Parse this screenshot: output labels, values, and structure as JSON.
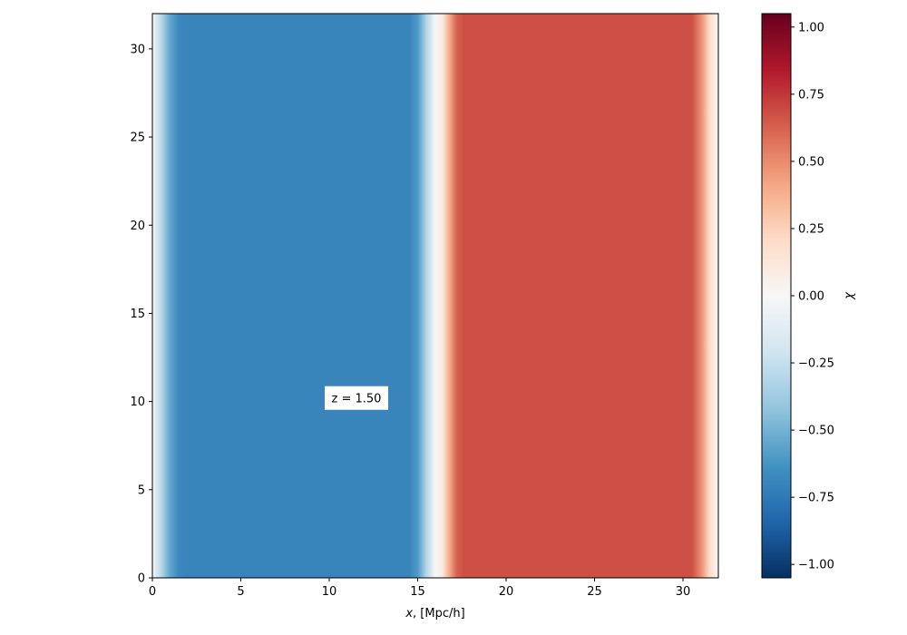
{
  "chart_data": {
    "type": "heatmap",
    "title": "",
    "xlabel_var": "x",
    "xlabel_rest": ", [Mpc/h]",
    "ylabel": "",
    "xlim": [
      0,
      32
    ],
    "ylim": [
      0,
      32
    ],
    "x_ticks": [
      "0",
      "5",
      "10",
      "15",
      "20",
      "25",
      "30"
    ],
    "y_ticks": [
      "0",
      "5",
      "10",
      "15",
      "20",
      "25",
      "30"
    ],
    "profile": {
      "description": "chi varies only along x (uniform in y)",
      "x": [
        0,
        0.5,
        1.0,
        1.5,
        2.0,
        14.5,
        15.0,
        15.5,
        16.0,
        16.4,
        16.8,
        17.2,
        17.6,
        30.5,
        31.0,
        31.5,
        32.0
      ],
      "chi": [
        0.0,
        -0.3,
        -0.55,
        -0.68,
        -0.7,
        -0.7,
        -0.6,
        -0.3,
        0.0,
        0.1,
        0.4,
        0.62,
        0.68,
        0.68,
        0.5,
        0.2,
        0.0
      ]
    },
    "annotation": {
      "text": "z = 1.50",
      "x": 10.0,
      "y": 10.2
    },
    "colorbar": {
      "label": "χ",
      "range": [
        -1.05,
        1.05
      ],
      "ticks": [
        "−1.00",
        "−0.75",
        "−0.50",
        "−0.25",
        "0.00",
        "0.25",
        "0.50",
        "0.75",
        "1.00"
      ],
      "tick_values": [
        -1.0,
        -0.75,
        -0.5,
        -0.25,
        0.0,
        0.25,
        0.5,
        0.75,
        1.0
      ],
      "colormap": "RdBu_r",
      "colors": [
        "#053061",
        "#2166ac",
        "#4393c3",
        "#92c5de",
        "#d1e5f0",
        "#f7f7f7",
        "#fddbc7",
        "#f4a582",
        "#d6604d",
        "#b2182b",
        "#67001f"
      ]
    },
    "grid": false,
    "legend": "none"
  }
}
